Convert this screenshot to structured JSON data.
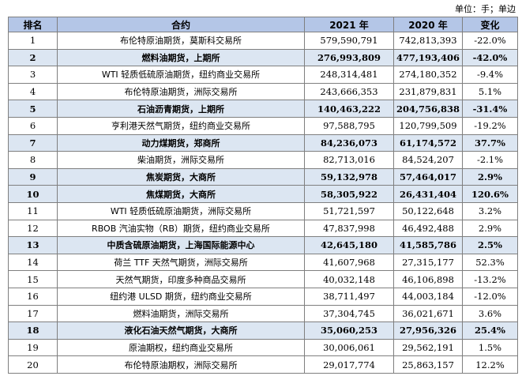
{
  "unit": "单位：手；单边",
  "table": {
    "header": [
      "排名",
      "合约",
      "2021 年",
      "2020 年",
      "变化"
    ],
    "highlight_color": "#dce6f2",
    "highlighted_rows": [
      1,
      4,
      6,
      8,
      9,
      12,
      17
    ],
    "rows": [
      [
        "1",
        "布伦特原油期货，莫斯科交易所",
        "579,590,791",
        "742,813,393",
        "-22.0%"
      ],
      [
        "2",
        "燃料油期货，上期所",
        "276,993,809",
        "477,193,406",
        "-42.0%"
      ],
      [
        "3",
        "WTI 轻质低硫原油期货，纽约商业交易所",
        "248,314,481",
        "274,180,352",
        "-9.4%"
      ],
      [
        "4",
        "布伦特原油期货，洲际交易所",
        "243,666,353",
        "231,879,831",
        "5.1%"
      ],
      [
        "5",
        "石油沥青期货，上期所",
        "140,463,222",
        "204,756,838",
        "-31.4%"
      ],
      [
        "6",
        "亨利港天然气期货，纽约商业交易所",
        "97,588,795",
        "120,799,509",
        "-19.2%"
      ],
      [
        "7",
        "动力煤期货，郑商所",
        "84,236,073",
        "61,174,572",
        "37.7%"
      ],
      [
        "8",
        "柴油期货，洲际交易所",
        "82,713,016",
        "84,524,207",
        "-2.1%"
      ],
      [
        "9",
        "焦炭期货，大商所",
        "59,132,978",
        "57,464,017",
        "2.9%"
      ],
      [
        "10",
        "焦煤期货，大商所",
        "58,305,922",
        "26,431,404",
        "120.6%"
      ],
      [
        "11",
        "WTI 轻质低硫原油期货，洲际交易所",
        "51,721,597",
        "50,122,648",
        "3.2%"
      ],
      [
        "12",
        "RBOB 汽油实物（RB）期货，纽约商业交易所",
        "47,837,998",
        "46,492,488",
        "2.9%"
      ],
      [
        "13",
        "中质含硫原油期货，上海国际能源中心",
        "42,645,180",
        "41,585,786",
        "2.5%"
      ],
      [
        "14",
        "荷兰 TTF 天然气期货，洲际交易所",
        "41,607,968",
        "27,315,177",
        "52.3%"
      ],
      [
        "15",
        "天然气期货，印度多种商品交易所",
        "40,032,148",
        "46,106,898",
        "-13.2%"
      ],
      [
        "16",
        "纽约港 ULSD 期货，纽约商业交易所",
        "38,711,497",
        "44,003,184",
        "-12.0%"
      ],
      [
        "17",
        "燃料油期货，洲际交易所",
        "37,304,745",
        "36,021,671",
        "3.6%"
      ],
      [
        "18",
        "液化石油天然气期货，大商所",
        "35,060,253",
        "27,956,326",
        "25.4%"
      ],
      [
        "19",
        "原油期权，纽约商业交易所",
        "30,006,061",
        "29,562,191",
        "1.5%"
      ],
      [
        "20",
        "布伦特原油期权，洲际交易所",
        "29,017,774",
        "25,863,157",
        "12.2%"
      ]
    ]
  }
}
